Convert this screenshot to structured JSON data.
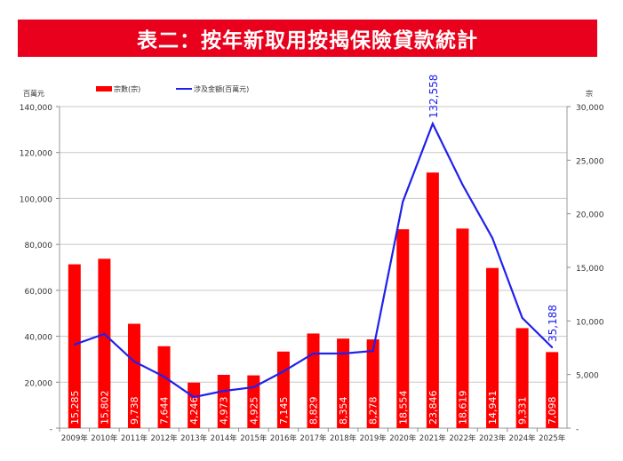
{
  "title": "表二：按年新取用按揭保險貸款統計",
  "chart_data": {
    "type": "bar+line",
    "title": "表二：按年新取用按揭保險貸款統計",
    "categories": [
      "2009年",
      "2010年",
      "2011年",
      "2012年",
      "2013年",
      "2014年",
      "2015年",
      "2016年",
      "2017年",
      "2018年",
      "2019年",
      "2020年",
      "2021年",
      "2022年",
      "2023年",
      "2024年",
      "2025年"
    ],
    "series": [
      {
        "name": "宗數(宗)",
        "type": "bar",
        "axis": "right",
        "color": "#ff0000",
        "values": [
          15285,
          15802,
          9738,
          7644,
          4246,
          4973,
          4925,
          7145,
          8829,
          8354,
          8278,
          18554,
          23846,
          18619,
          14941,
          9331,
          7098
        ],
        "labels": [
          "15,285",
          "15,802",
          "9,738",
          "7,644",
          "4,246",
          "4,973",
          "4,925",
          "7,145",
          "8,829",
          "8,354",
          "8,278",
          "18,554",
          "23,846",
          "18,619",
          "14,941",
          "9,331",
          "7,098"
        ]
      },
      {
        "name": "涉及金額(百萬元)",
        "type": "line",
        "axis": "left",
        "color": "#2020ee",
        "values": [
          36400,
          41000,
          29000,
          22400,
          13500,
          16200,
          17800,
          24700,
          32500,
          32500,
          33600,
          98600,
          132558,
          106000,
          82800,
          48000,
          35188
        ],
        "annotations": {
          "12": "132,558",
          "16": "35,188"
        }
      }
    ],
    "ylabel_left": "百萬元",
    "ylabel_right": "宗",
    "ylim_left": [
      0,
      140000
    ],
    "ylim_right": [
      0,
      30000
    ],
    "yticks_left": [
      "-",
      "20,000",
      "40,000",
      "60,000",
      "80,000",
      "100,000",
      "120,000",
      "140,000"
    ],
    "yticks_right": [
      "-",
      "5,000",
      "10,000",
      "15,000",
      "20,000",
      "25,000",
      "30,000"
    ],
    "legend_position": "top",
    "grid": true
  }
}
